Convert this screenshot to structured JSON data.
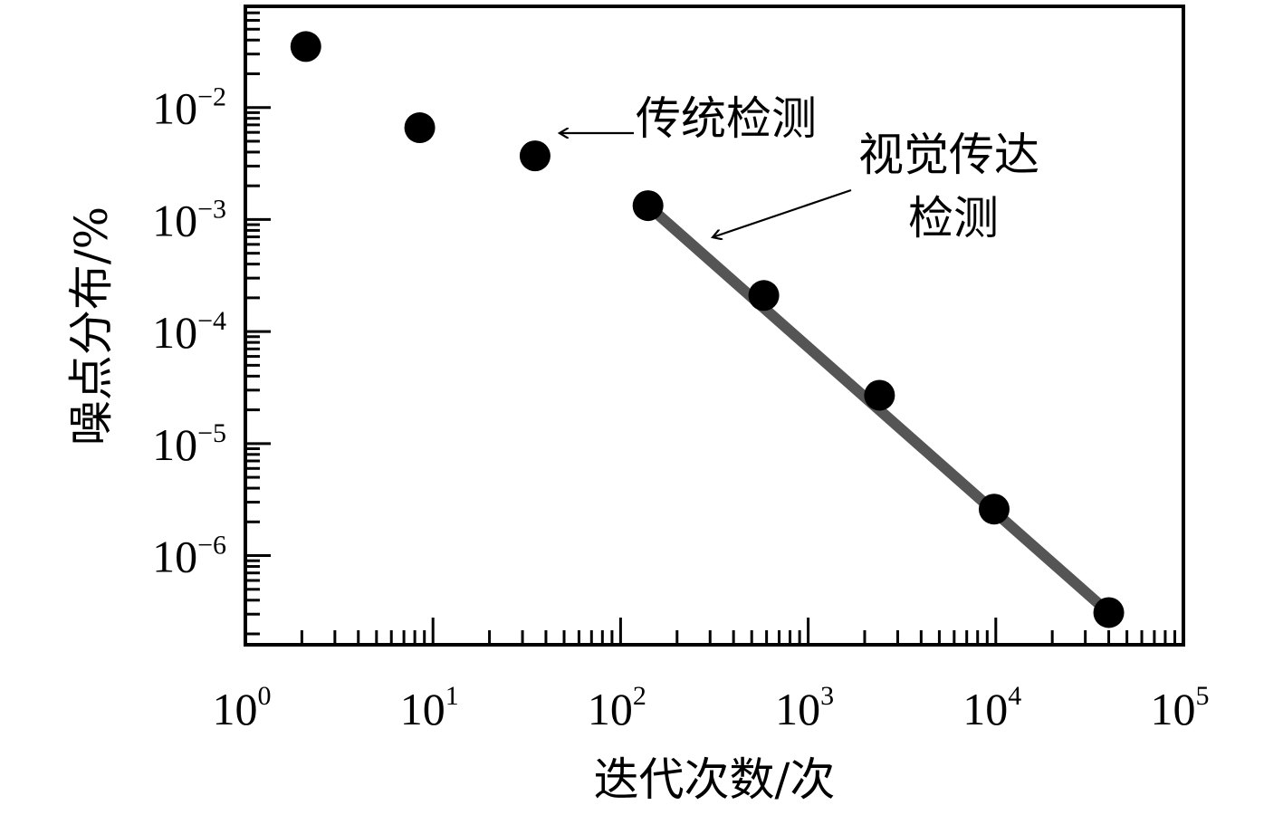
{
  "chart_data": {
    "type": "scatter",
    "title": "",
    "xlabel": "迭代次数/次",
    "ylabel": "噪点分布/%",
    "xscale": "log",
    "yscale": "log",
    "xlim": [
      1,
      100000
    ],
    "ylim": [
      1.6e-07,
      0.08
    ],
    "x_ticks": [
      {
        "base": "10",
        "exp": "0"
      },
      {
        "base": "10",
        "exp": "1"
      },
      {
        "base": "10",
        "exp": "2"
      },
      {
        "base": "10",
        "exp": "3"
      },
      {
        "base": "10",
        "exp": "4"
      },
      {
        "base": "10",
        "exp": "5"
      }
    ],
    "y_ticks": [
      {
        "base": "10",
        "exp": "−2"
      },
      {
        "base": "10",
        "exp": "−3"
      },
      {
        "base": "10",
        "exp": "−4"
      },
      {
        "base": "10",
        "exp": "−5"
      },
      {
        "base": "10",
        "exp": "−6"
      }
    ],
    "grid": false,
    "series": [
      {
        "x": [
          2.1,
          8.5,
          35,
          140,
          580,
          2400,
          9800,
          40000
        ],
        "y": [
          0.035,
          0.0066,
          0.0037,
          0.00133,
          0.00021,
          2.7e-05,
          2.6e-06,
          3.1e-07
        ],
        "color": "#000000"
      }
    ],
    "fit_line": {
      "x": [
        140,
        40000
      ],
      "y": [
        0.00133,
        3.1e-07
      ],
      "color": "#555555"
    },
    "annotations": [
      {
        "text": "传统检测",
        "x": 45,
        "y": 0.0048
      },
      {
        "lines": [
          "视觉传达",
          "检测"
        ],
        "x": 290,
        "y": 0.00078
      }
    ]
  }
}
